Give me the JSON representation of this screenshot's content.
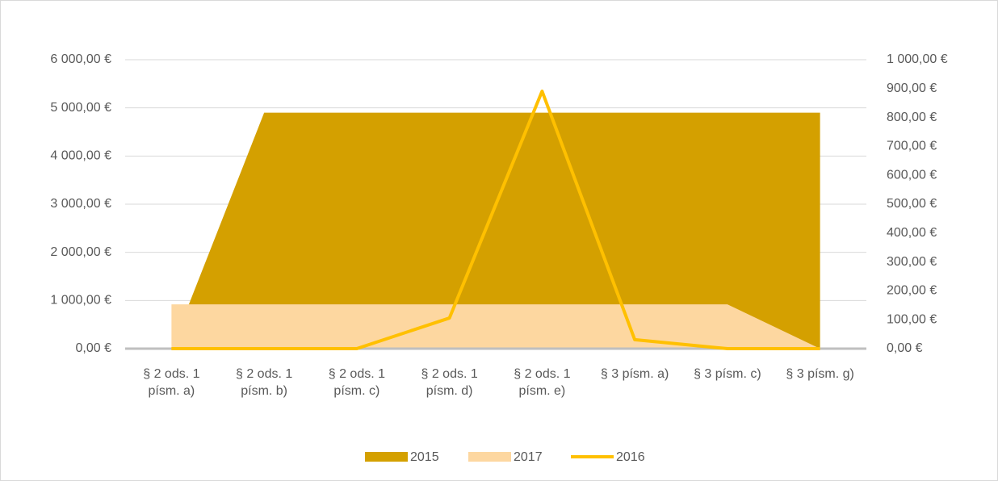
{
  "chart_data": {
    "type": "area-line",
    "categories": [
      "§ 2 ods. 1 písm. a)",
      "§ 2 ods. 1 písm. b)",
      "§ 2 ods. 1 písm. c)",
      "§ 2 ods. 1 písm. d)",
      "§ 2 ods. 1 písm. e)",
      "§ 3 písm. a)",
      "§ 3 písm. c)",
      "§ 3 písm. g)"
    ],
    "series": [
      {
        "name": "2015",
        "color": "#d4a000",
        "kind": "area",
        "values": [
          0,
          4900,
          4900,
          4900,
          4900,
          4900,
          4900,
          4900
        ]
      },
      {
        "name": "2017",
        "color": "#fdd7a0",
        "kind": "area",
        "values": [
          920,
          920,
          920,
          920,
          920,
          920,
          920,
          0
        ]
      },
      {
        "name": "2016",
        "color": "#ffc000",
        "kind": "line",
        "axis": "y2",
        "values": [
          0,
          0,
          0,
          106,
          891,
          31,
          0,
          0
        ]
      }
    ],
    "ylim": [
      0,
      6000
    ],
    "yticks": [
      {
        "value": 0,
        "label": "0,00 €"
      },
      {
        "value": 1000,
        "label": "1 000,00 €"
      },
      {
        "value": 2000,
        "label": "2 000,00 €"
      },
      {
        "value": 3000,
        "label": "3 000,00 €"
      },
      {
        "value": 4000,
        "label": "4 000,00 €"
      },
      {
        "value": 5000,
        "label": "5 000,00 €"
      },
      {
        "value": 6000,
        "label": "6 000,00 €"
      }
    ],
    "y2lim": [
      0,
      1000
    ],
    "y2ticks": [
      {
        "value": 0,
        "label": "0,00 €"
      },
      {
        "value": 100,
        "label": "100,00 €"
      },
      {
        "value": 200,
        "label": "200,00 €"
      },
      {
        "value": 300,
        "label": "300,00 €"
      },
      {
        "value": 400,
        "label": "400,00 €"
      },
      {
        "value": 500,
        "label": "500,00 €"
      },
      {
        "value": 600,
        "label": "600,00 €"
      },
      {
        "value": 700,
        "label": "700,00 €"
      },
      {
        "value": 800,
        "label": "800,00 €"
      },
      {
        "value": 900,
        "label": "900,00 €"
      },
      {
        "value": 1000,
        "label": "1 000,00 €"
      }
    ],
    "grid": true,
    "legend": "bottom"
  }
}
